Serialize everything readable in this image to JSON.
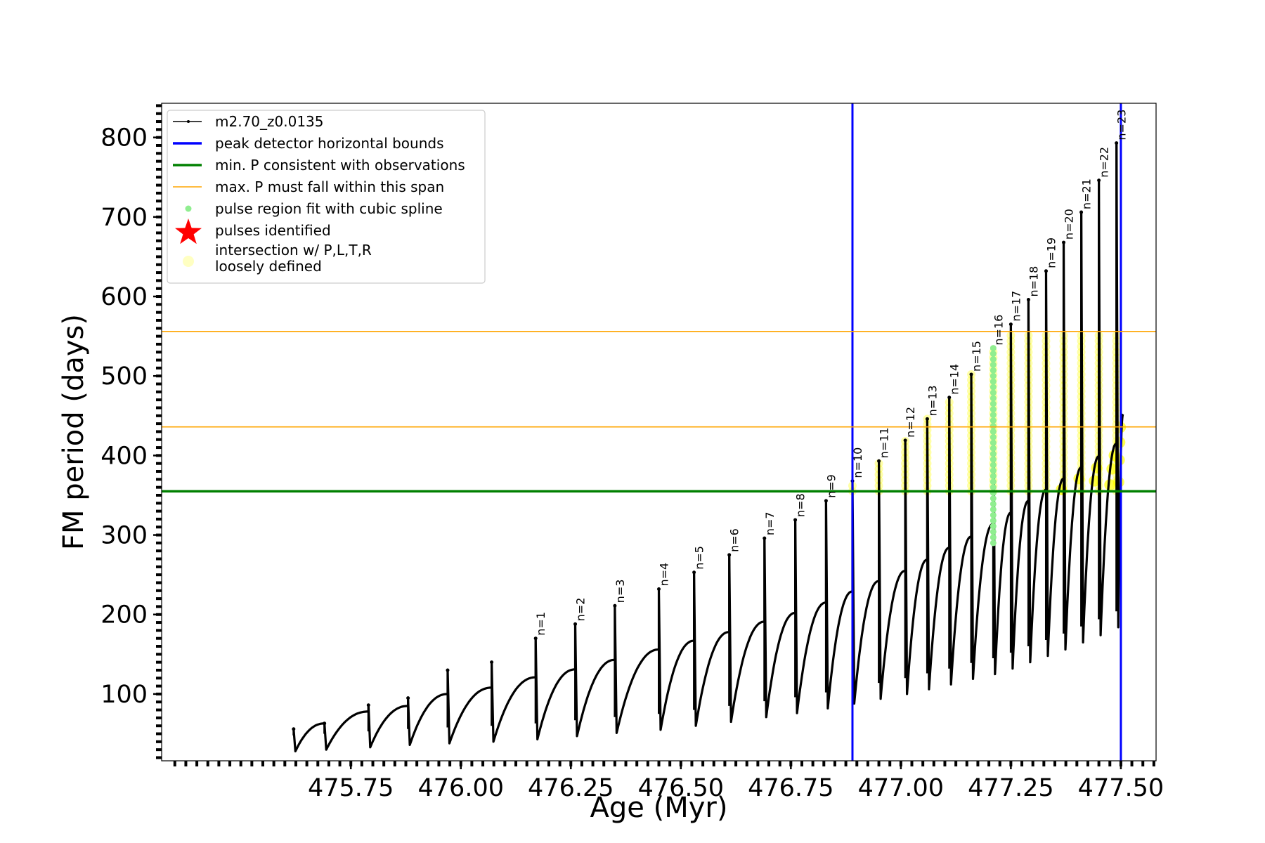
{
  "chart_data": {
    "type": "line",
    "title": "",
    "xlabel": "Age (Myr)",
    "ylabel": "FM period (days)",
    "xlim": [
      475.32,
      477.58
    ],
    "ylim": [
      16,
      843
    ],
    "xticks": [
      475.75,
      476.0,
      476.25,
      476.5,
      476.75,
      477.0,
      477.25,
      477.5
    ],
    "xtick_labels": [
      "475.75",
      "476.00",
      "476.25",
      "476.50",
      "476.75",
      "477.00",
      "477.25",
      "477.50"
    ],
    "yticks": [
      100,
      200,
      300,
      400,
      500,
      600,
      700,
      800
    ],
    "ytick_labels": [
      "100",
      "200",
      "300",
      "400",
      "500",
      "600",
      "700",
      "800"
    ],
    "grid": false,
    "legend_position": "top-left",
    "legend": [
      {
        "label": "m2.70_z0.0135",
        "kind": "line-marker",
        "color": "#000000"
      },
      {
        "label": "peak detector horizontal bounds",
        "kind": "line",
        "color": "#0000ff"
      },
      {
        "label": "min. P consistent with observations",
        "kind": "line",
        "color": "#008000"
      },
      {
        "label": "max. P must fall within this span",
        "kind": "line",
        "color": "#ffa500"
      },
      {
        "label": "pulse region fit with cubic spline",
        "kind": "dot",
        "color": "#90ee90"
      },
      {
        "label": "pulses identified",
        "kind": "star",
        "color": "#ff0000"
      },
      {
        "label": "intersection w/ P,L,T,R\nloosely defined",
        "kind": "circle",
        "color": "#ffff99"
      }
    ],
    "series": [
      {
        "name": "m2.70_z0.0135",
        "color": "#000000",
        "pulses": [
          {
            "x": 475.62,
            "peak": 56,
            "start": 28,
            "end": 63
          },
          {
            "x": 475.69,
            "peak": 63,
            "start": 30,
            "end": 78
          },
          {
            "x": 475.79,
            "peak": 86,
            "start": 33,
            "end": 85
          },
          {
            "x": 475.88,
            "peak": 95,
            "start": 36,
            "end": 100
          },
          {
            "x": 475.97,
            "peak": 130,
            "start": 38,
            "end": 108
          },
          {
            "x": 476.07,
            "peak": 140,
            "start": 40,
            "end": 121
          },
          {
            "x": 476.17,
            "peak": 170,
            "start": 43,
            "end": 131,
            "label": "n=1"
          },
          {
            "x": 476.26,
            "peak": 188,
            "start": 47,
            "end": 143,
            "label": "n=2"
          },
          {
            "x": 476.35,
            "peak": 211,
            "start": 51,
            "end": 156,
            "label": "n=3"
          },
          {
            "x": 476.45,
            "peak": 232,
            "start": 55,
            "end": 167,
            "label": "n=4"
          },
          {
            "x": 476.53,
            "peak": 253,
            "start": 60,
            "end": 178,
            "label": "n=5"
          },
          {
            "x": 476.61,
            "peak": 275,
            "start": 65,
            "end": 191,
            "label": "n=6"
          },
          {
            "x": 476.69,
            "peak": 296,
            "start": 71,
            "end": 202,
            "label": "n=7"
          },
          {
            "x": 476.76,
            "peak": 319,
            "start": 76,
            "end": 215,
            "label": "n=8"
          },
          {
            "x": 476.83,
            "peak": 343,
            "start": 82,
            "end": 229,
            "label": "n=9"
          },
          {
            "x": 476.89,
            "peak": 368,
            "start": 88,
            "end": 242,
            "label": "n=10"
          },
          {
            "x": 476.95,
            "peak": 393,
            "start": 94,
            "end": 255,
            "label": "n=11"
          },
          {
            "x": 477.01,
            "peak": 419,
            "start": 100,
            "end": 269,
            "label": "n=12"
          },
          {
            "x": 477.06,
            "peak": 446,
            "start": 106,
            "end": 284,
            "label": "n=13"
          },
          {
            "x": 477.11,
            "peak": 473,
            "start": 112,
            "end": 298,
            "label": "n=14"
          },
          {
            "x": 477.16,
            "peak": 502,
            "start": 119,
            "end": 314,
            "label": "n=15"
          },
          {
            "x": 477.21,
            "peak": 535,
            "start": 125,
            "end": 328,
            "label": "n=16"
          },
          {
            "x": 477.25,
            "peak": 565,
            "start": 132,
            "end": 343,
            "label": "n=17"
          },
          {
            "x": 477.29,
            "peak": 596,
            "start": 140,
            "end": 357,
            "label": "n=18"
          },
          {
            "x": 477.33,
            "peak": 632,
            "start": 148,
            "end": 371,
            "label": "n=19"
          },
          {
            "x": 477.37,
            "peak": 668,
            "start": 156,
            "end": 385,
            "label": "n=20"
          },
          {
            "x": 477.41,
            "peak": 706,
            "start": 165,
            "end": 399,
            "label": "n=21"
          },
          {
            "x": 477.45,
            "peak": 746,
            "start": 174,
            "end": 415,
            "label": "n=22"
          },
          {
            "x": 477.49,
            "peak": 793,
            "start": 184,
            "end": 452,
            "label": "n=23"
          }
        ]
      }
    ],
    "reference_lines": {
      "vertical_blue": [
        476.89,
        477.5
      ],
      "horizontal_green": [
        355
      ],
      "horizontal_orange": [
        436,
        556
      ]
    },
    "spline_region": {
      "x": 477.21,
      "y_min": 290,
      "y_max": 535
    },
    "yellow_region": {
      "x_start": 476.89,
      "x_end": 477.5,
      "y_min": 355,
      "y_max": 556
    }
  }
}
